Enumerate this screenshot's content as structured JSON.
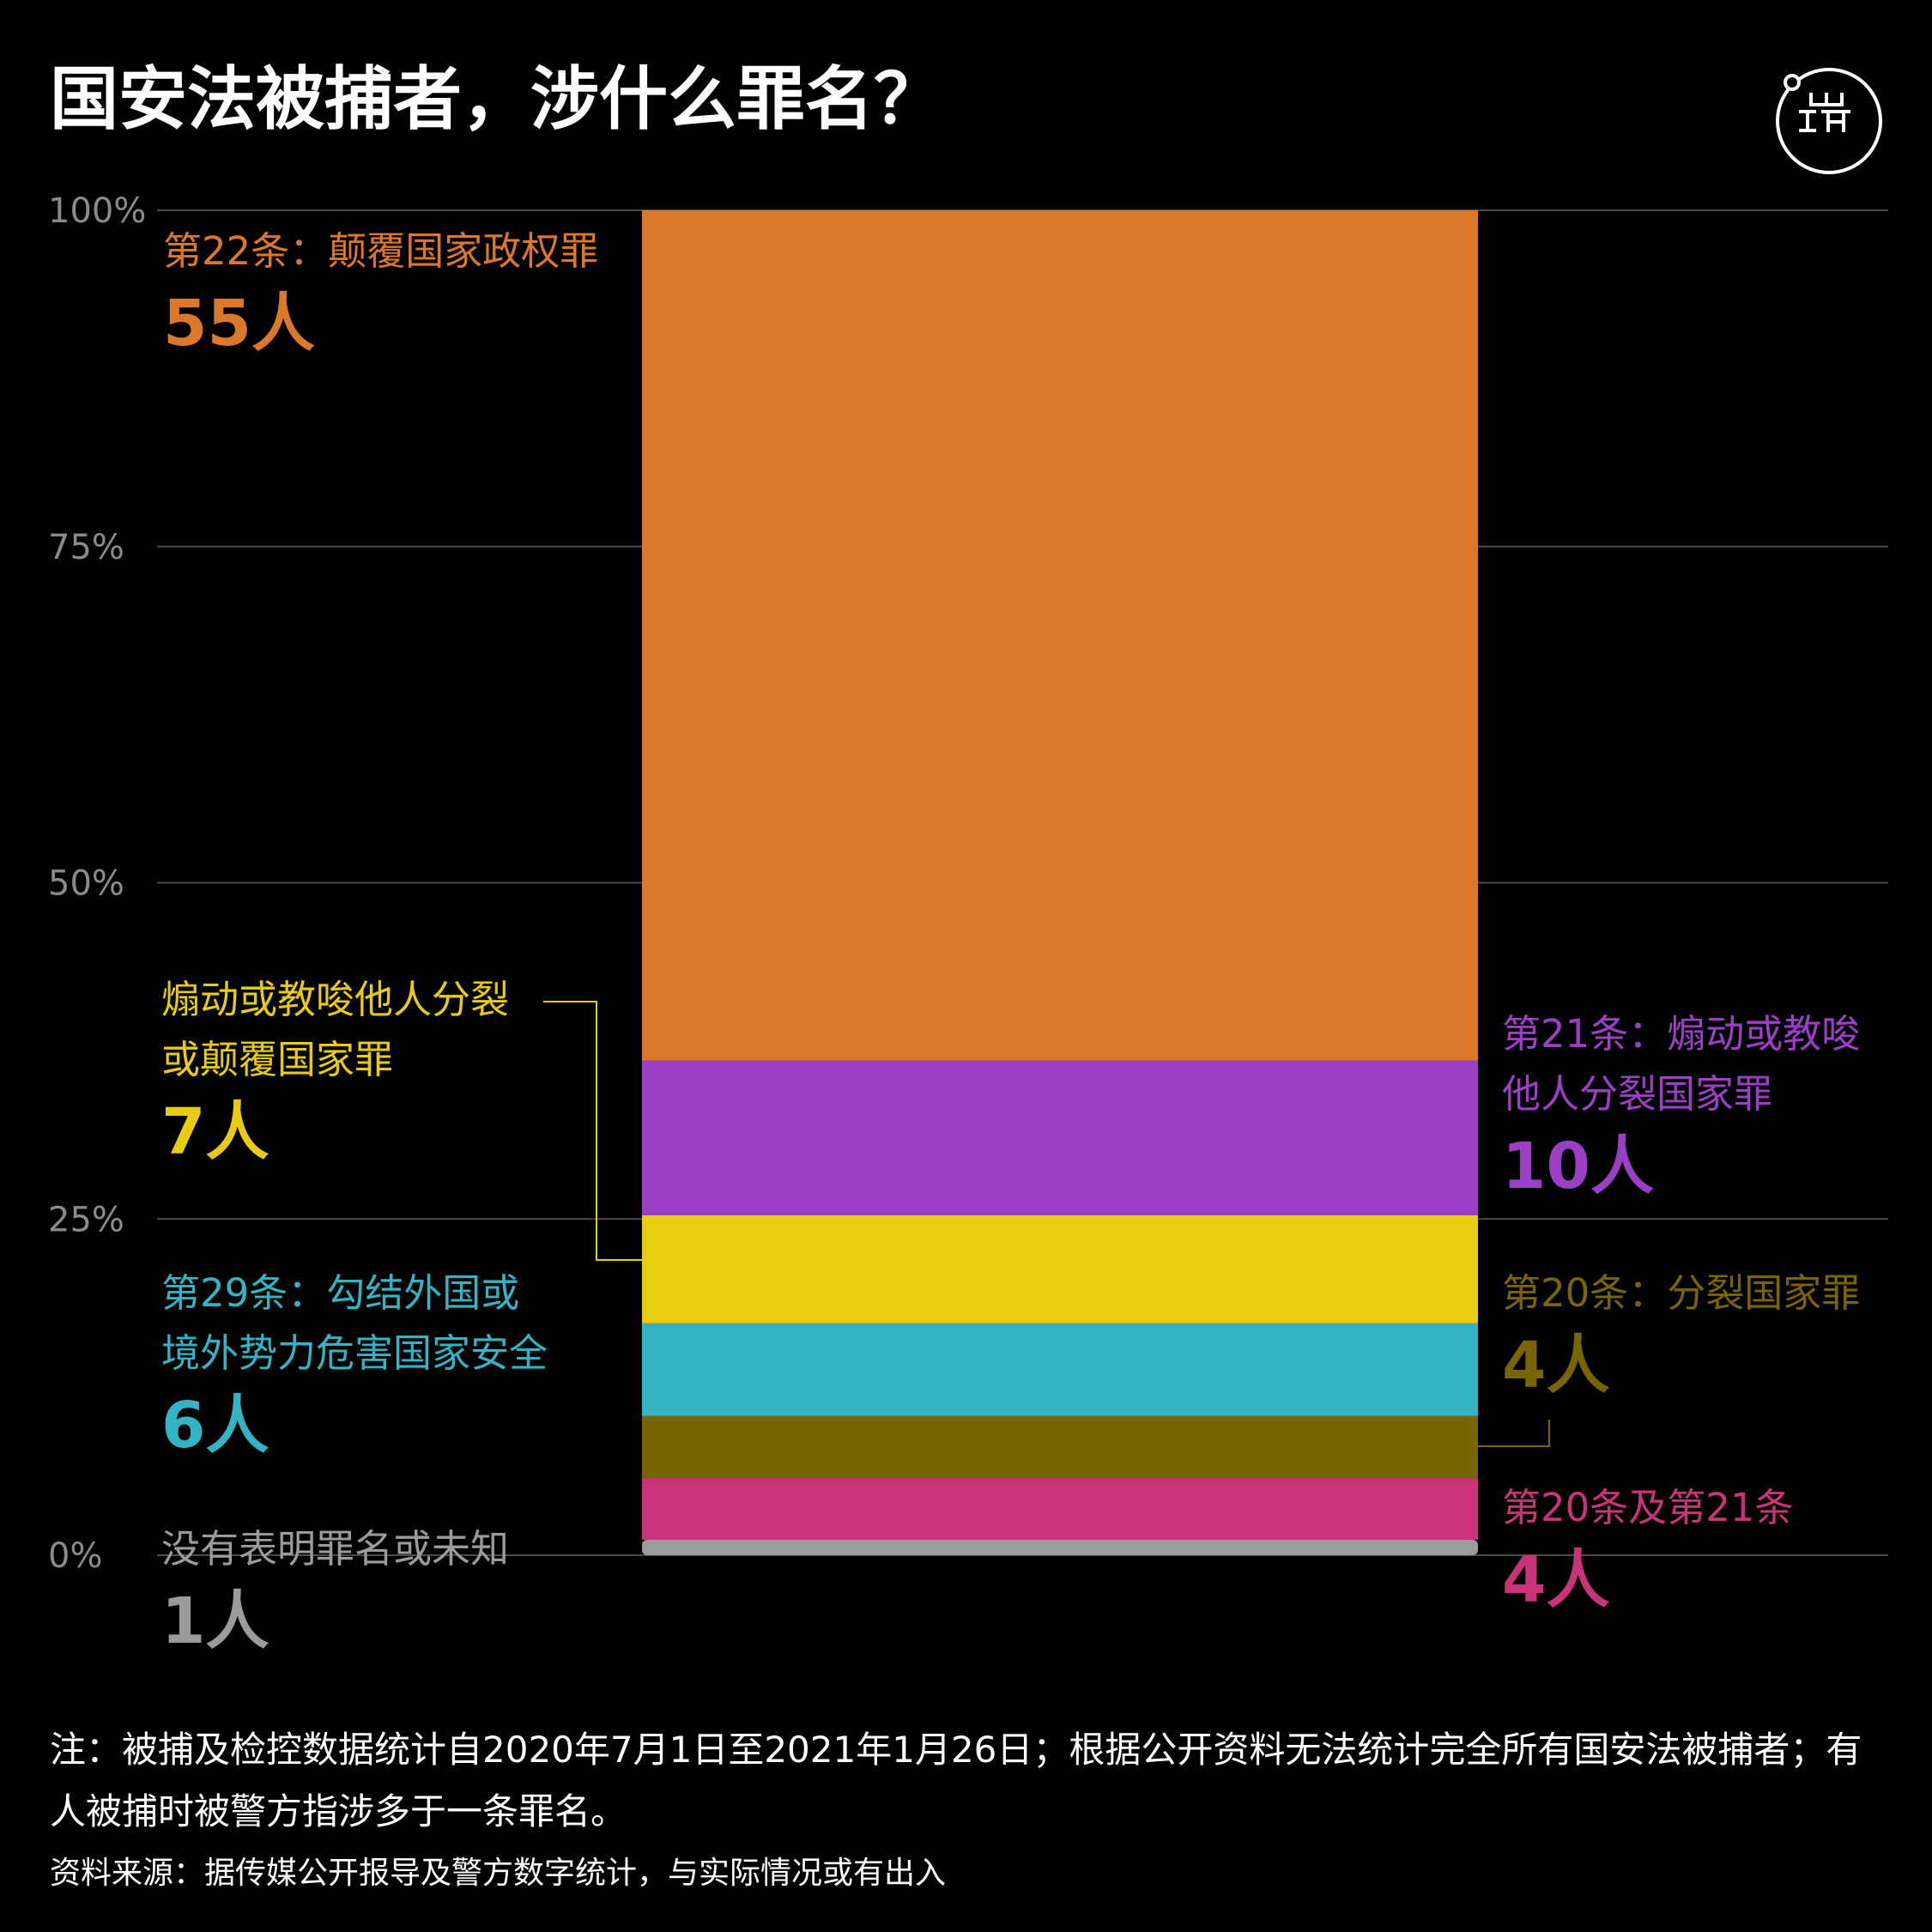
{
  "title": "国安法被捕者，涉什么罪名？",
  "logo_icon": "initium-logo-icon",
  "chart_data": {
    "type": "bar",
    "stacked": true,
    "percent_stacked": true,
    "ylim": [
      0,
      100
    ],
    "yticks": [
      0,
      25,
      50,
      75,
      100
    ],
    "ytick_labels": [
      "0%",
      "25%",
      "50%",
      "75%",
      "100%"
    ],
    "grid": true,
    "series": [
      {
        "category": "没有表明罪名或未知",
        "count_label": "1人",
        "value": 1,
        "color": "#9b9b9b"
      },
      {
        "category": "第20条及第21条",
        "count_label": "4人",
        "value": 4,
        "color": "#c8337a"
      },
      {
        "category": "第20条：分裂国家罪",
        "count_label": "4人",
        "value": 4,
        "color": "#786500"
      },
      {
        "category": "第29条：勾结外国或境外势力危害国家安全",
        "count_label": "6人",
        "value": 6,
        "color": "#33b4c4"
      },
      {
        "category": "煽动或教唆他人分裂或颠覆国家罪",
        "count_label": "7人",
        "value": 7,
        "color": "#e8cc12"
      },
      {
        "category": "第21条：煽动或教唆他人分裂国家罪",
        "count_label": "10人",
        "value": 10,
        "color": "#9b3fc7"
      },
      {
        "category": "第22条：颠覆国家政权罪",
        "count_label": "55人",
        "value": 55,
        "color": "#dc782a"
      }
    ]
  },
  "labels": {
    "c22": {
      "line1": "第22条：颠覆国家政权罪",
      "count": "55人"
    },
    "incite": {
      "line1": "煽动或教唆他人分裂",
      "line2": "或颠覆国家罪",
      "count": "7人"
    },
    "c29": {
      "line1": "第29条：勾结外国或",
      "line2": "境外势力危害国家安全",
      "count": "6人"
    },
    "unknown": {
      "line1": "没有表明罪名或未知",
      "count": "1人"
    },
    "c21": {
      "line1": "第21条：煽动或教唆",
      "line2": "他人分裂国家罪",
      "count": "10人"
    },
    "c20": {
      "line1": "第20条：分裂国家罪",
      "count": "4人"
    },
    "c20_21": {
      "line1": "第20条及第21条",
      "count": "4人"
    }
  },
  "note": "注：被捕及检控数据统计自2020年7月1日至2021年1月26日；根据公开资料无法统计完全所有国安法被捕者；有人被捕时被警方指涉多于一条罪名。",
  "source": "资料来源：据传媒公开报导及警方数字统计，与实际情况或有出入"
}
